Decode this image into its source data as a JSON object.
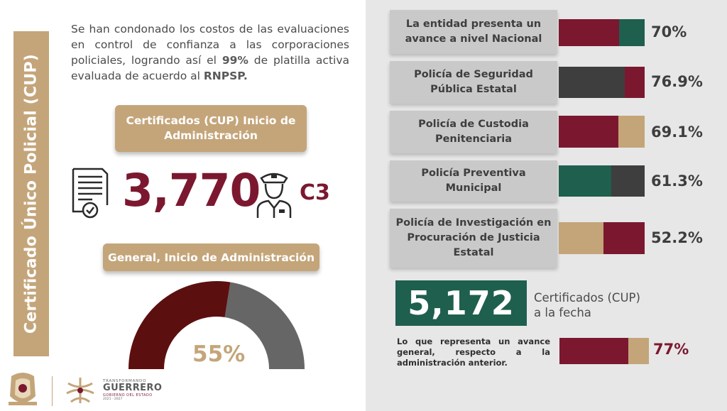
{
  "side_title": "Certificado Único Policial (CUP)",
  "intro": {
    "text_1": "Se han condonado los costos de las evaluaciones en control de confianza a las corporaciones policiales, logrando así el ",
    "highlight_pct": "99%",
    "text_2": " de platilla activa evaluada de acuerdo al ",
    "highlight_org": "RNPSP."
  },
  "certified_label": "Certificados (CUP) Inicio de Administración",
  "certified_number": "3,770",
  "certified_unit": "C3",
  "general_label": "General, Inicio de Administración",
  "gauge": {
    "percent_text": "55%",
    "value": 0.55
  },
  "logos": {
    "small": "TRANSFORMANDO",
    "main": "GUERRERO",
    "sub": "GOBIERNO DEL ESTADO",
    "years": "2021 - 2027"
  },
  "progress": [
    {
      "label": "La entidad presenta un avance a nivel Nacional",
      "percent": "70%",
      "segments": [
        {
          "color": "#7b1830",
          "fraction": 0.7
        },
        {
          "color": "#1f5f4e",
          "fraction": 0.3
        }
      ]
    },
    {
      "label": "Policía de Seguridad Pública Estatal",
      "percent": "76.9%",
      "segments": [
        {
          "color": "#3e3e3e",
          "fraction": 0.769
        },
        {
          "color": "#7b1830",
          "fraction": 0.231
        }
      ]
    },
    {
      "label": "Policía de Custodia Penitenciaria",
      "percent": "69.1%",
      "segments": [
        {
          "color": "#7b1830",
          "fraction": 0.691
        },
        {
          "color": "#c4a57a",
          "fraction": 0.309
        }
      ]
    },
    {
      "label": "Policía Preventiva Municipal",
      "percent": "61.3%",
      "segments": [
        {
          "color": "#1f5f4e",
          "fraction": 0.613
        },
        {
          "color": "#3e3e3e",
          "fraction": 0.387
        }
      ]
    },
    {
      "label": "Policía de Investigación en Procuración de Justicia Estatal",
      "percent": "52.2%",
      "segments": [
        {
          "color": "#c4a57a",
          "fraction": 0.522
        },
        {
          "color": "#7b1830",
          "fraction": 0.478
        }
      ]
    }
  ],
  "total": {
    "number": "5,172",
    "label": "Certificados (CUP) a la fecha"
  },
  "summary": {
    "note": "Lo que representa un avance general, respecto a la administración anterior.",
    "percent": "77%",
    "segments": [
      {
        "color": "#7b1830",
        "fraction": 0.77
      },
      {
        "color": "#c4a57a",
        "fraction": 0.23
      }
    ]
  },
  "colors": {
    "gold": "#c4a57a",
    "maroon": "#7b1830",
    "green": "#1f5f4e",
    "dark_gray": "#3e3e3e",
    "gauge_dark": "#5c0f0f",
    "gauge_gray": "#666666"
  }
}
